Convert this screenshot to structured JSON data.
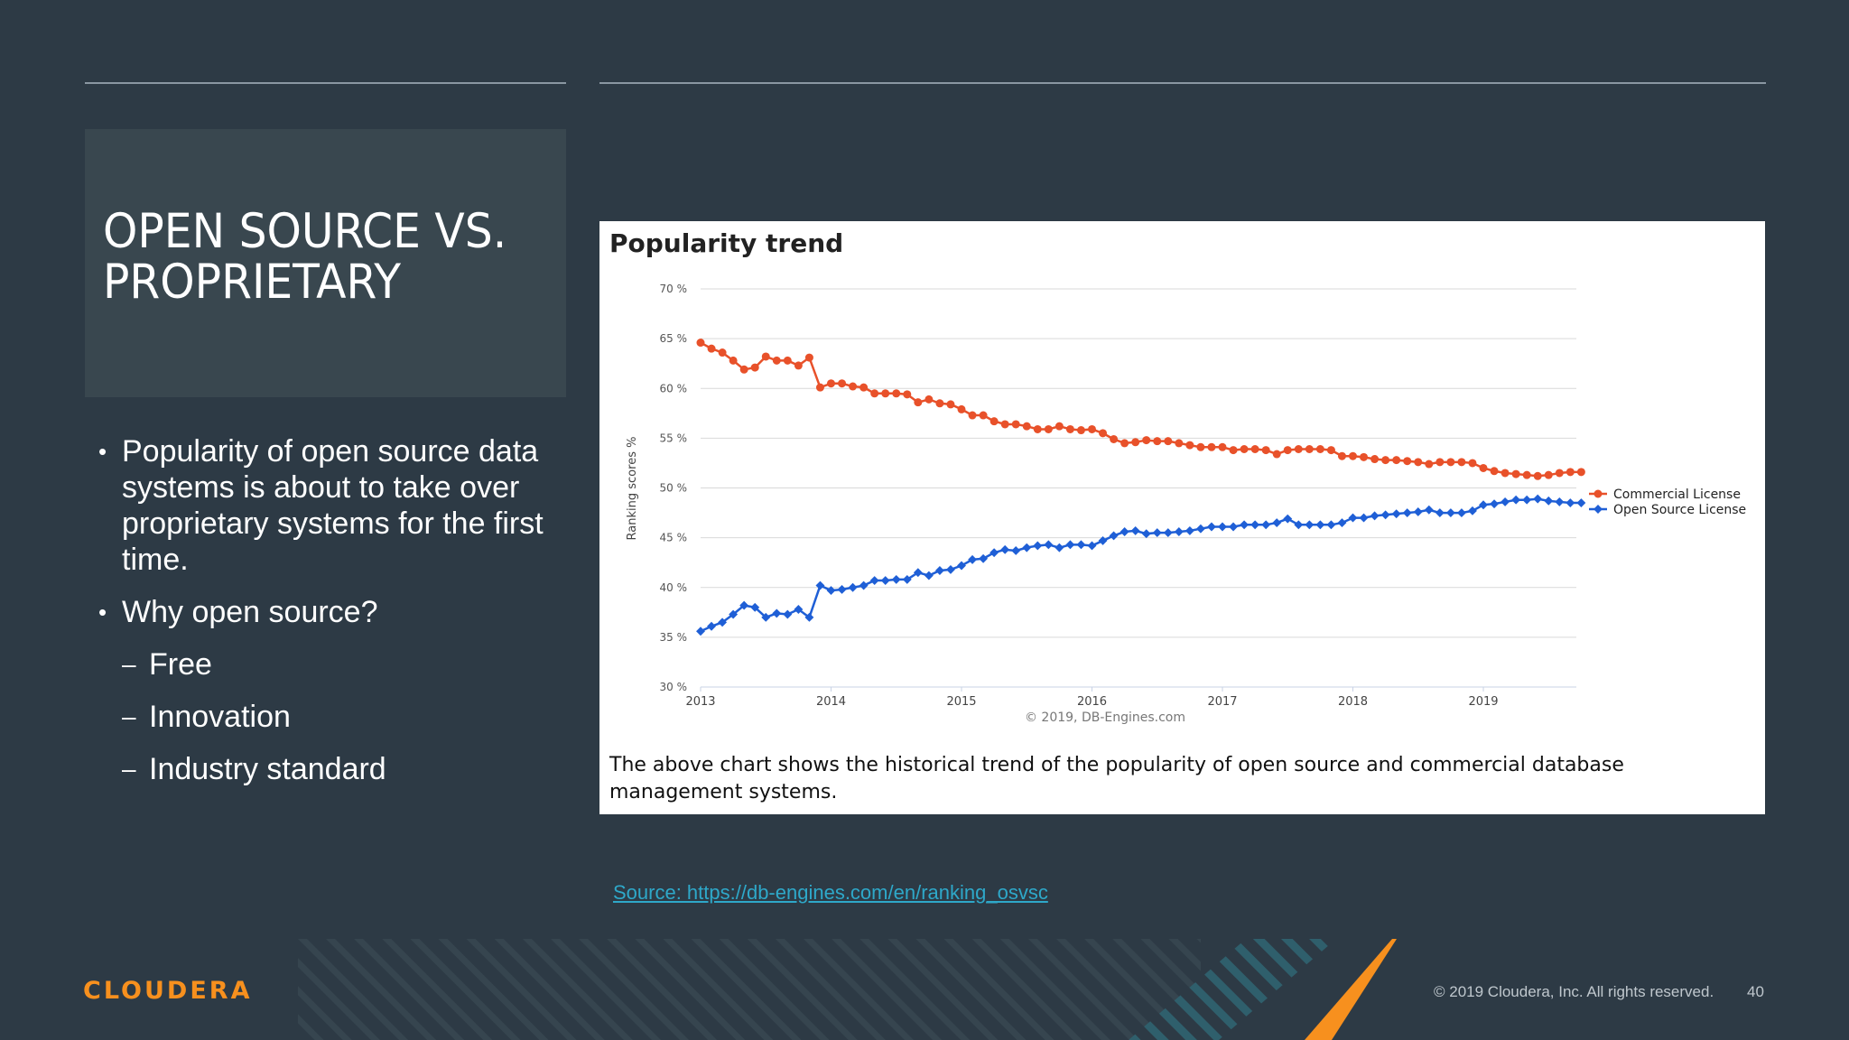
{
  "slide": {
    "title_line1": "OPEN SOURCE VS.",
    "title_line2": "PROPRIETARY",
    "bullets": [
      {
        "text": "Popularity of open source data systems is about to take over proprietary systems for the first time."
      },
      {
        "text": "Why open source?"
      }
    ],
    "sub_bullets": [
      "Free",
      "Innovation",
      "Industry standard"
    ],
    "source_link": "Source: https://db-engines.com/en/ranking_osvsc",
    "logo": "CLOUDERA",
    "copyright": "© 2019 Cloudera, Inc. All rights reserved.",
    "page_number": "40"
  },
  "colors": {
    "background": "#2d3a45",
    "title_box": "#39474f",
    "commercial": "#e8512a",
    "open_source": "#1f5fd6",
    "brand_orange": "#f7901e",
    "link": "#2ea8c9"
  },
  "chart_data": {
    "type": "line",
    "title": "Popularity trend",
    "ylabel": "Ranking scores %",
    "ylim": [
      30,
      70
    ],
    "y_ticks": [
      "30 %",
      "35 %",
      "40 %",
      "45 %",
      "50 %",
      "55 %",
      "60 %",
      "65 %",
      "70 %"
    ],
    "x_ticks": [
      "2013",
      "2014",
      "2015",
      "2016",
      "2017",
      "2018",
      "2019"
    ],
    "x_start": "2013-01",
    "x_interval": "monthly",
    "legend_position": "right",
    "credit": "© 2019, DB-Engines.com",
    "caption": "The above chart shows the historical trend of the popularity of open source and commercial database management systems.",
    "series": [
      {
        "name": "Commercial License",
        "color": "#e8512a",
        "values": [
          64.6,
          64.0,
          63.6,
          62.8,
          61.9,
          62.1,
          63.2,
          62.8,
          62.8,
          62.3,
          63.1,
          60.1,
          60.5,
          60.5,
          60.2,
          60.1,
          59.5,
          59.5,
          59.5,
          59.4,
          58.6,
          58.9,
          58.5,
          58.4,
          57.9,
          57.3,
          57.3,
          56.7,
          56.4,
          56.4,
          56.2,
          55.9,
          55.9,
          56.2,
          55.9,
          55.8,
          55.9,
          55.5,
          54.9,
          54.5,
          54.6,
          54.8,
          54.7,
          54.7,
          54.5,
          54.3,
          54.1,
          54.1,
          54.1,
          53.8,
          53.9,
          53.9,
          53.8,
          53.4,
          53.8,
          53.9,
          53.9,
          53.9,
          53.8,
          53.2,
          53.2,
          53.1,
          52.9,
          52.8,
          52.8,
          52.7,
          52.6,
          52.4,
          52.6,
          52.6,
          52.6,
          52.5,
          52.0,
          51.7,
          51.5,
          51.4,
          51.3,
          51.2,
          51.3,
          51.5,
          51.6,
          51.6
        ]
      },
      {
        "name": "Open Source License",
        "color": "#1f5fd6",
        "values": [
          35.6,
          36.1,
          36.5,
          37.3,
          38.2,
          38.0,
          37.0,
          37.4,
          37.3,
          37.8,
          37.0,
          40.2,
          39.7,
          39.8,
          40.0,
          40.2,
          40.7,
          40.7,
          40.8,
          40.8,
          41.5,
          41.2,
          41.7,
          41.8,
          42.2,
          42.8,
          42.9,
          43.5,
          43.8,
          43.7,
          44.0,
          44.2,
          44.3,
          44.0,
          44.3,
          44.3,
          44.2,
          44.7,
          45.2,
          45.6,
          45.7,
          45.4,
          45.5,
          45.5,
          45.6,
          45.7,
          45.9,
          46.1,
          46.1,
          46.1,
          46.3,
          46.3,
          46.3,
          46.5,
          46.9,
          46.3,
          46.3,
          46.3,
          46.3,
          46.5,
          47.0,
          47.0,
          47.2,
          47.3,
          47.4,
          47.5,
          47.6,
          47.8,
          47.5,
          47.5,
          47.5,
          47.7,
          48.3,
          48.4,
          48.6,
          48.8,
          48.8,
          48.9,
          48.7,
          48.6,
          48.5,
          48.5
        ]
      }
    ]
  }
}
